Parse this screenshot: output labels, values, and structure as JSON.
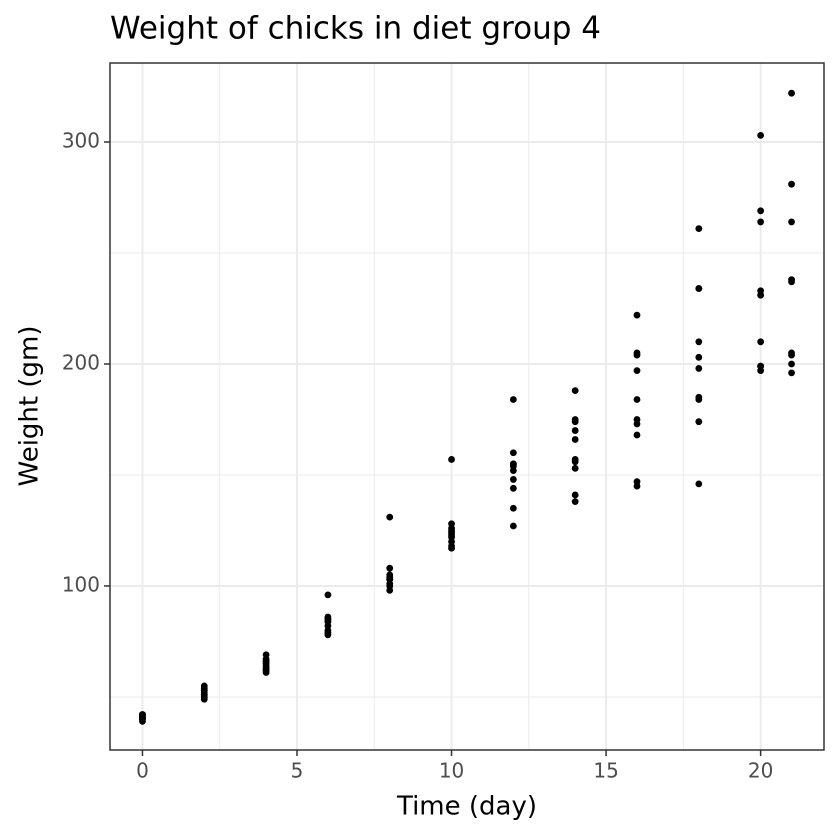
{
  "chart_data": {
    "type": "scatter",
    "title": "Weight of chicks in diet group 4",
    "x_label": "Time (day)",
    "y_label": "Weight (gm)",
    "x": [
      0,
      2,
      4,
      6,
      8,
      10,
      12,
      14,
      16,
      18,
      20,
      21,
      0,
      2,
      4,
      6,
      8,
      10,
      12,
      14,
      16,
      18,
      20,
      21,
      0,
      2,
      4,
      6,
      8,
      10,
      12,
      14,
      16,
      18,
      20,
      21,
      0,
      2,
      4,
      6,
      8,
      10,
      12,
      14,
      16,
      18,
      0,
      2,
      4,
      6,
      8,
      10,
      12,
      14,
      16,
      18,
      20,
      21,
      0,
      2,
      4,
      6,
      8,
      10,
      12,
      14,
      16,
      18,
      20,
      21,
      0,
      2,
      4,
      6,
      8,
      10,
      12,
      14,
      16,
      18,
      20,
      21,
      0,
      2,
      4,
      6,
      8,
      10,
      12,
      14,
      16,
      18,
      20,
      21,
      0,
      2,
      4,
      6,
      8,
      10,
      12,
      14,
      16,
      18,
      20,
      21,
      0,
      2,
      4,
      6,
      8,
      10,
      12,
      14,
      16,
      18,
      20,
      21
    ],
    "values": [
      42,
      51,
      66,
      85,
      103,
      124,
      155,
      153,
      175,
      184,
      199,
      204,
      42,
      49,
      63,
      84,
      103,
      126,
      160,
      174,
      204,
      234,
      269,
      281,
      42,
      55,
      69,
      96,
      131,
      157,
      184,
      188,
      197,
      198,
      199,
      200,
      42,
      51,
      65,
      86,
      103,
      118,
      127,
      138,
      145,
      146,
      41,
      50,
      61,
      78,
      98,
      117,
      135,
      141,
      147,
      174,
      197,
      196,
      40,
      52,
      62,
      82,
      101,
      120,
      144,
      156,
      173,
      210,
      231,
      238,
      41,
      53,
      66,
      79,
      100,
      123,
      148,
      157,
      168,
      185,
      210,
      205,
      39,
      50,
      62,
      80,
      104,
      125,
      154,
      170,
      222,
      261,
      303,
      322,
      40,
      53,
      64,
      85,
      108,
      128,
      152,
      166,
      184,
      203,
      233,
      237,
      41,
      54,
      67,
      84,
      105,
      122,
      155,
      175,
      205,
      234,
      264,
      264
    ],
    "color": "#000000",
    "xlim": [
      -1.05,
      22.05
    ],
    "ylim": [
      26.1,
      335.6
    ],
    "xticks": [
      0,
      5,
      10,
      15,
      20
    ],
    "yticks": [
      100,
      200,
      300
    ],
    "x_minor_grid": [
      2.5,
      7.5,
      12.5,
      17.5
    ],
    "y_minor_grid": [
      50,
      150,
      250,
      350
    ],
    "grid": true
  }
}
